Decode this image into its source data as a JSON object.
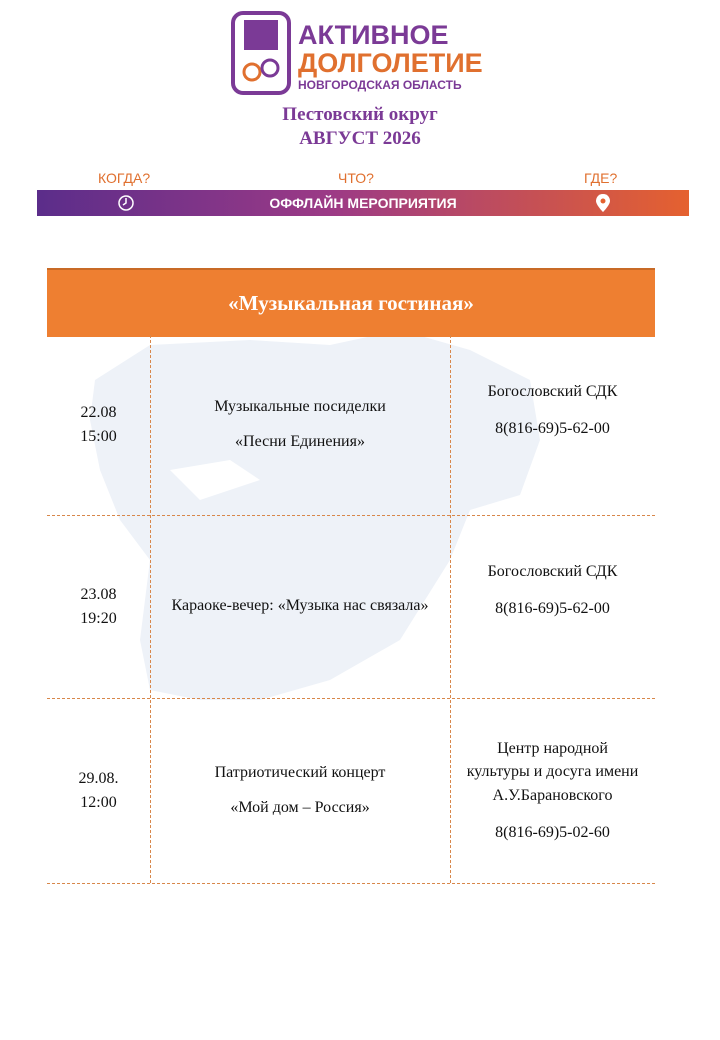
{
  "header": {
    "logo_line1": "АКТИВНОЕ",
    "logo_line2": "ДОЛГОЛЕТИЕ",
    "logo_line3": "НОВГОРОДСКАЯ ОБЛАСТЬ",
    "district": "Пестовский округ",
    "month": "АВГУСТ 2026"
  },
  "bar": {
    "when": "КОГДА?",
    "what": "ЧТО?",
    "where": "ГДЕ?",
    "label": "ОФФЛАЙН МЕРОПРИЯТИЯ"
  },
  "table": {
    "title": "«Музыкальная гостиная»",
    "rows": [
      {
        "date": "22.08",
        "time": "15:00",
        "event": [
          "Музыкальные посиделки",
          "«Песни Единения»"
        ],
        "place": "Богословский СДК",
        "phone": "8(816-69)5-62-00"
      },
      {
        "date": "23.08",
        "time": "19:20",
        "event": [
          "Караоке-вечер: «Музыка нас связала»"
        ],
        "place": "Богословский СДК",
        "phone": "8(816-69)5-62-00"
      },
      {
        "date": "29.08.",
        "time": "12:00",
        "event": [
          "Патриотический концерт",
          "«Мой дом – Россия»"
        ],
        "place": "Центр народной культуры и досуга имени А.У.Барановского",
        "phone": "8(816-69)5-02-60"
      }
    ]
  }
}
